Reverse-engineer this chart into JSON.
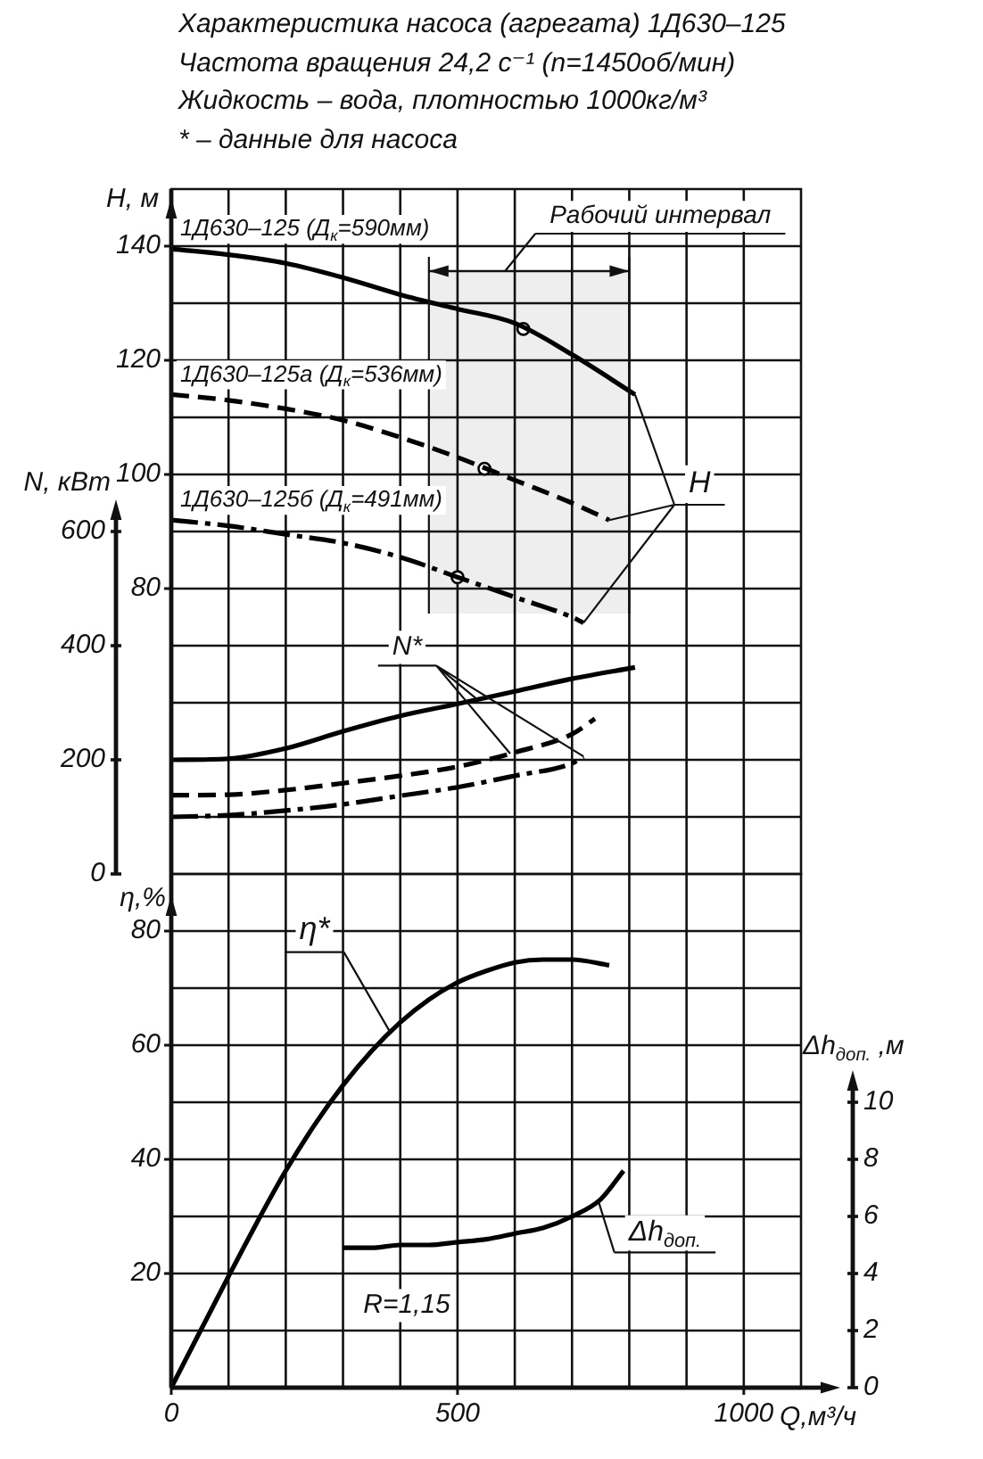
{
  "chart_data": [
    {
      "type": "line",
      "title": "Характеристика насоса (агрегата) 1Д630–125",
      "subtitle": "Частота вращения 24,2 с⁻¹ (n=1450об/мин)\nЖидкость – вода, плотностью 1000кг/м³\n* – данные для насоса",
      "ylabel": "H, м",
      "y2label": "N, кВт",
      "tick_labels": "y",
      "xlim": [
        0,
        1100
      ],
      "xticks": [
        0,
        {
          "value": 100,
          "label": null
        },
        {
          "value": 200,
          "label": null
        },
        {
          "value": 300,
          "label": null
        },
        {
          "value": 400,
          "label": null
        },
        500,
        {
          "value": 600,
          "label": null
        },
        {
          "value": 700,
          "label": null
        },
        {
          "value": 800,
          "label": null
        },
        {
          "value": 900,
          "label": null
        },
        1000
      ],
      "ylim": [
        30,
        150
      ],
      "yticks": [
        {
          "value": 40,
          "label": null
        },
        {
          "value": 50,
          "label": null
        },
        {
          "value": 60,
          "label": null
        },
        {
          "value": 70,
          "label": null
        },
        80,
        {
          "value": 90,
          "label": null
        },
        100,
        {
          "value": 110,
          "label": null
        },
        120,
        {
          "value": 130,
          "label": null
        },
        140
      ],
      "y2lim": [
        0,
        1200
      ],
      "y2ticks": [
        0,
        200,
        400,
        600
      ],
      "grid": true,
      "legend": false,
      "marker": "none",
      "series": [
        {
          "name": "1Д630–125 (Д$_{к}$=590мм)",
          "color": "#000000",
          "line_style": "solid",
          "x": [
            0,
            100,
            200,
            300,
            400,
            500,
            600,
            700,
            810
          ],
          "values": [
            139.5,
            138.5,
            137,
            134.5,
            131.5,
            129,
            126.5,
            121,
            114
          ]
        },
        {
          "name": "1Д630–125а (Д$_{к}$=536мм)",
          "color": "#000000",
          "line_style": "dashed",
          "x": [
            0,
            100,
            200,
            300,
            400,
            500,
            600,
            700,
            765
          ],
          "values": [
            114,
            113,
            111.5,
            109.5,
            106.5,
            103,
            99,
            95,
            92
          ]
        },
        {
          "name": "1Д630–125б (Д$_{к}$=491мм)",
          "color": "#000000",
          "line_style": "dashdot",
          "x": [
            0,
            100,
            200,
            300,
            400,
            500,
            600,
            700,
            720
          ],
          "values": [
            92,
            91,
            89.5,
            88,
            85.5,
            82,
            78.5,
            75,
            74
          ]
        },
        {
          "name": "N*",
          "color": "#000000",
          "axis": "y2",
          "line_style": "solid",
          "x": [
            0,
            100,
            200,
            300,
            400,
            500,
            600,
            700,
            810
          ],
          "values": [
            200,
            202,
            220,
            250,
            277,
            298,
            320,
            342,
            362
          ]
        },
        {
          "color": "#000000",
          "axis": "y2",
          "line_style": "dashed",
          "x": [
            0,
            100,
            200,
            300,
            400,
            500,
            600,
            700,
            740
          ],
          "values": [
            138,
            139,
            147,
            159,
            172,
            188,
            213,
            245,
            272
          ]
        },
        {
          "color": "#000000",
          "axis": "y2",
          "line_style": "dashdot",
          "x": [
            0,
            100,
            200,
            300,
            400,
            500,
            600,
            700,
            720
          ],
          "values": [
            100,
            103,
            111,
            122,
            137,
            152,
            172,
            194,
            206
          ]
        },
        {
          "type": "scatter",
          "color": "#000000",
          "marker": "circle",
          "x": [
            615,
            547,
            500
          ],
          "values": [
            125.5,
            101,
            82
          ]
        }
      ],
      "bands": [
        {
          "axis": "x",
          "from": 450,
          "to": 800,
          "label": "Рабочий интервал",
          "color": "#eeeeee"
        }
      ],
      "annotations": [
        {
          "text": "H",
          "x": 765,
          "y": 92
        }
      ]
    },
    {
      "type": "line",
      "xlabel": "Q,м³/ч",
      "ylabel": "η,%",
      "y2label": "Δh$_{доп.}$ ,м",
      "xlim": [
        0,
        1100
      ],
      "xticks": [
        0,
        {
          "value": 100,
          "label": null
        },
        {
          "value": 200,
          "label": null
        },
        {
          "value": 300,
          "label": null
        },
        {
          "value": 400,
          "label": null
        },
        500,
        {
          "value": 600,
          "label": null
        },
        {
          "value": 700,
          "label": null
        },
        {
          "value": 800,
          "label": null
        },
        {
          "value": 900,
          "label": null
        },
        1000
      ],
      "ylim": [
        0,
        90
      ],
      "yticks": [
        {
          "value": 10,
          "label": null
        },
        20,
        {
          "value": 30,
          "label": null
        },
        40,
        {
          "value": 50,
          "label": null
        },
        60,
        {
          "value": 70,
          "label": null
        },
        80
      ],
      "y2lim": [
        0,
        18
      ],
      "y2ticks": [
        0,
        2,
        4,
        6,
        8,
        10
      ],
      "grid": true,
      "legend": false,
      "marker": "none",
      "series": [
        {
          "name": "η*",
          "color": "#000000",
          "line_style": "solid",
          "x": [
            0,
            100,
            150,
            200,
            250,
            300,
            350,
            400,
            450,
            500,
            550,
            600,
            650,
            700,
            765
          ],
          "values": [
            0,
            19.5,
            29,
            38,
            46,
            53,
            59,
            64,
            68,
            71,
            73,
            74.5,
            75,
            75,
            74
          ]
        },
        {
          "name": "Δh$_{доп.}$",
          "color": "#000000",
          "axis": "y2",
          "line_style": "solid",
          "x": [
            300,
            350,
            400,
            450,
            500,
            550,
            600,
            650,
            700,
            750,
            790
          ],
          "values": [
            4.9,
            4.9,
            5,
            5,
            5.1,
            5.2,
            5.4,
            5.6,
            6,
            6.6,
            7.6
          ]
        }
      ],
      "annotations": [
        "R=1,15"
      ]
    }
  ]
}
